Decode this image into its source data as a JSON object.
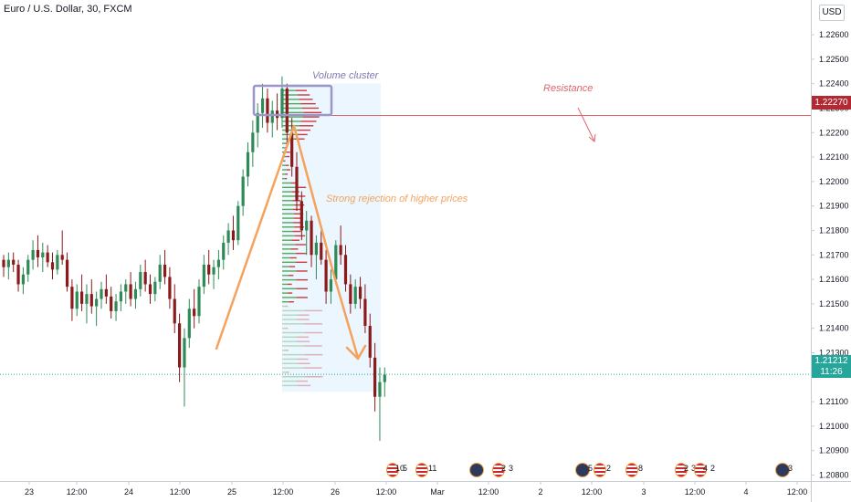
{
  "legend": "Euro / U.S. Dollar, 30, FXCM",
  "currency": "USD",
  "annotations": {
    "volume_cluster": "Volume cluster",
    "resistance": "Resistance",
    "rejection": "Strong rejection of higher prices"
  },
  "price_tags": {
    "resistance": "1.22270",
    "current_price": "1.21212",
    "countdown": "11:26"
  },
  "colors": {
    "up": "#2e8b57",
    "down": "#8b1a1a",
    "resistance": "#e0656a",
    "arrow": "#f5a25d",
    "cluster_box": "#9b96c7",
    "profile_up": "#43a047",
    "profile_down": "#c62828",
    "profile_area": "#e3f2fd"
  },
  "events": [
    {
      "label": "10",
      "num": "5"
    },
    {
      "label": "",
      "num": "11"
    },
    {
      "label": "",
      "num": ""
    },
    {
      "label": "2",
      "num": "3"
    },
    {
      "label": "",
      "num": "5"
    },
    {
      "label": "",
      "num": "2"
    },
    {
      "label": "",
      "num": "8"
    },
    {
      "label": "2",
      "num": "3"
    },
    {
      "label": "4",
      "num": "2"
    },
    {
      "label": "",
      "num": "3"
    }
  ],
  "chart_data": {
    "type": "candlestick",
    "symbol": "Euro / U.S. Dollar",
    "interval": "30",
    "source": "FXCM",
    "ylim": [
      1.2078,
      1.2266
    ],
    "y_ticks": [
      "1.22600",
      "1.22500",
      "1.22400",
      "1.22300",
      "1.22200",
      "1.22100",
      "1.22000",
      "1.21900",
      "1.21800",
      "1.21700",
      "1.21600",
      "1.21500",
      "1.21400",
      "1.21300",
      "1.21100",
      "1.21000",
      "1.20900",
      "1.20800"
    ],
    "x_ticks": [
      "23",
      "12:00",
      "24",
      "12:00",
      "25",
      "12:00",
      "26",
      "12:00",
      "Mar",
      "12:00",
      "2",
      "12:00",
      "3",
      "12:00",
      "4",
      "12:00"
    ],
    "resistance_level": 1.2227,
    "current_price": 1.21212,
    "candles": [
      [
        1.2168,
        1.217,
        1.2161,
        1.2165
      ],
      [
        1.2165,
        1.2171,
        1.216,
        1.2168
      ],
      [
        1.2168,
        1.2171,
        1.2163,
        1.2166
      ],
      [
        1.2166,
        1.2168,
        1.2155,
        1.2158
      ],
      [
        1.2158,
        1.2165,
        1.2154,
        1.2162
      ],
      [
        1.2162,
        1.217,
        1.2159,
        1.2168
      ],
      [
        1.2168,
        1.2176,
        1.2164,
        1.2172
      ],
      [
        1.2172,
        1.2178,
        1.2165,
        1.2169
      ],
      [
        1.2169,
        1.2175,
        1.2163,
        1.2171
      ],
      [
        1.2171,
        1.2174,
        1.2165,
        1.2167
      ],
      [
        1.2167,
        1.2171,
        1.216,
        1.2164
      ],
      [
        1.2164,
        1.2172,
        1.2162,
        1.217
      ],
      [
        1.217,
        1.218,
        1.2166,
        1.2168
      ],
      [
        1.2168,
        1.2171,
        1.2155,
        1.2157
      ],
      [
        1.2157,
        1.216,
        1.2143,
        1.2148
      ],
      [
        1.2148,
        1.2158,
        1.2145,
        1.2155
      ],
      [
        1.2155,
        1.2162,
        1.2147,
        1.215
      ],
      [
        1.215,
        1.2158,
        1.2142,
        1.2154
      ],
      [
        1.2154,
        1.216,
        1.2146,
        1.2149
      ],
      [
        1.2149,
        1.2155,
        1.2141,
        1.2152
      ],
      [
        1.2152,
        1.2159,
        1.2148,
        1.2156
      ],
      [
        1.2156,
        1.2162,
        1.215,
        1.2153
      ],
      [
        1.2153,
        1.2157,
        1.2144,
        1.2147
      ],
      [
        1.2147,
        1.2154,
        1.2143,
        1.2151
      ],
      [
        1.2151,
        1.2158,
        1.2147,
        1.2155
      ],
      [
        1.2155,
        1.216,
        1.215,
        1.2158
      ],
      [
        1.2158,
        1.2163,
        1.2149,
        1.2152
      ],
      [
        1.2152,
        1.2159,
        1.2148,
        1.2156
      ],
      [
        1.2156,
        1.2166,
        1.2153,
        1.2163
      ],
      [
        1.2163,
        1.2168,
        1.2155,
        1.2158
      ],
      [
        1.2158,
        1.2162,
        1.215,
        1.2154
      ],
      [
        1.2154,
        1.2161,
        1.2151,
        1.2159
      ],
      [
        1.2159,
        1.217,
        1.2156,
        1.2166
      ],
      [
        1.2166,
        1.2172,
        1.2158,
        1.2161
      ],
      [
        1.2161,
        1.2165,
        1.2148,
        1.2152
      ],
      [
        1.2152,
        1.2158,
        1.2138,
        1.2142
      ],
      [
        1.2142,
        1.2146,
        1.2118,
        1.2124
      ],
      [
        1.2124,
        1.214,
        1.2108,
        1.2136
      ],
      [
        1.2136,
        1.2152,
        1.2132,
        1.2148
      ],
      [
        1.2148,
        1.2156,
        1.214,
        1.2145
      ],
      [
        1.2145,
        1.216,
        1.2142,
        1.2157
      ],
      [
        1.2157,
        1.217,
        1.2154,
        1.2166
      ],
      [
        1.2166,
        1.2172,
        1.2158,
        1.2162
      ],
      [
        1.2162,
        1.2168,
        1.2156,
        1.2165
      ],
      [
        1.2165,
        1.2172,
        1.216,
        1.2168
      ],
      [
        1.2168,
        1.2178,
        1.2164,
        1.2175
      ],
      [
        1.2175,
        1.2183,
        1.217,
        1.218
      ],
      [
        1.218,
        1.2186,
        1.2172,
        1.2176
      ],
      [
        1.2176,
        1.2192,
        1.2174,
        1.219
      ],
      [
        1.219,
        1.2205,
        1.2186,
        1.2202
      ],
      [
        1.2202,
        1.2216,
        1.2198,
        1.2212
      ],
      [
        1.2212,
        1.2225,
        1.2206,
        1.222
      ],
      [
        1.222,
        1.2232,
        1.2214,
        1.2228
      ],
      [
        1.2228,
        1.224,
        1.2222,
        1.2234
      ],
      [
        1.2234,
        1.2238,
        1.222,
        1.2224
      ],
      [
        1.2224,
        1.2233,
        1.2218,
        1.2229
      ],
      [
        1.2229,
        1.2236,
        1.2221,
        1.2226
      ],
      [
        1.2226,
        1.2243,
        1.2222,
        1.2238
      ],
      [
        1.2238,
        1.224,
        1.2216,
        1.222
      ],
      [
        1.222,
        1.2226,
        1.2202,
        1.2206
      ],
      [
        1.2206,
        1.2212,
        1.2188,
        1.2192
      ],
      [
        1.2192,
        1.2196,
        1.2176,
        1.218
      ],
      [
        1.218,
        1.2188,
        1.217,
        1.2184
      ],
      [
        1.2184,
        1.2186,
        1.2165,
        1.217
      ],
      [
        1.217,
        1.2178,
        1.216,
        1.2175
      ],
      [
        1.2175,
        1.218,
        1.2166,
        1.2168
      ],
      [
        1.2168,
        1.2172,
        1.215,
        1.2155
      ],
      [
        1.2155,
        1.2164,
        1.215,
        1.216
      ],
      [
        1.216,
        1.2176,
        1.2158,
        1.2174
      ],
      [
        1.2174,
        1.2182,
        1.2166,
        1.217
      ],
      [
        1.217,
        1.2174,
        1.2155,
        1.2158
      ],
      [
        1.2158,
        1.2162,
        1.2146,
        1.215
      ],
      [
        1.215,
        1.216,
        1.2148,
        1.2157
      ],
      [
        1.2157,
        1.2161,
        1.2148,
        1.2152
      ],
      [
        1.2152,
        1.2158,
        1.2138,
        1.2141
      ],
      [
        1.2141,
        1.2146,
        1.2124,
        1.2128
      ],
      [
        1.2128,
        1.2134,
        1.2106,
        1.2112
      ],
      [
        1.2112,
        1.2124,
        1.2094,
        1.2118
      ],
      [
        1.2118,
        1.2124,
        1.2112,
        1.2121
      ]
    ]
  }
}
